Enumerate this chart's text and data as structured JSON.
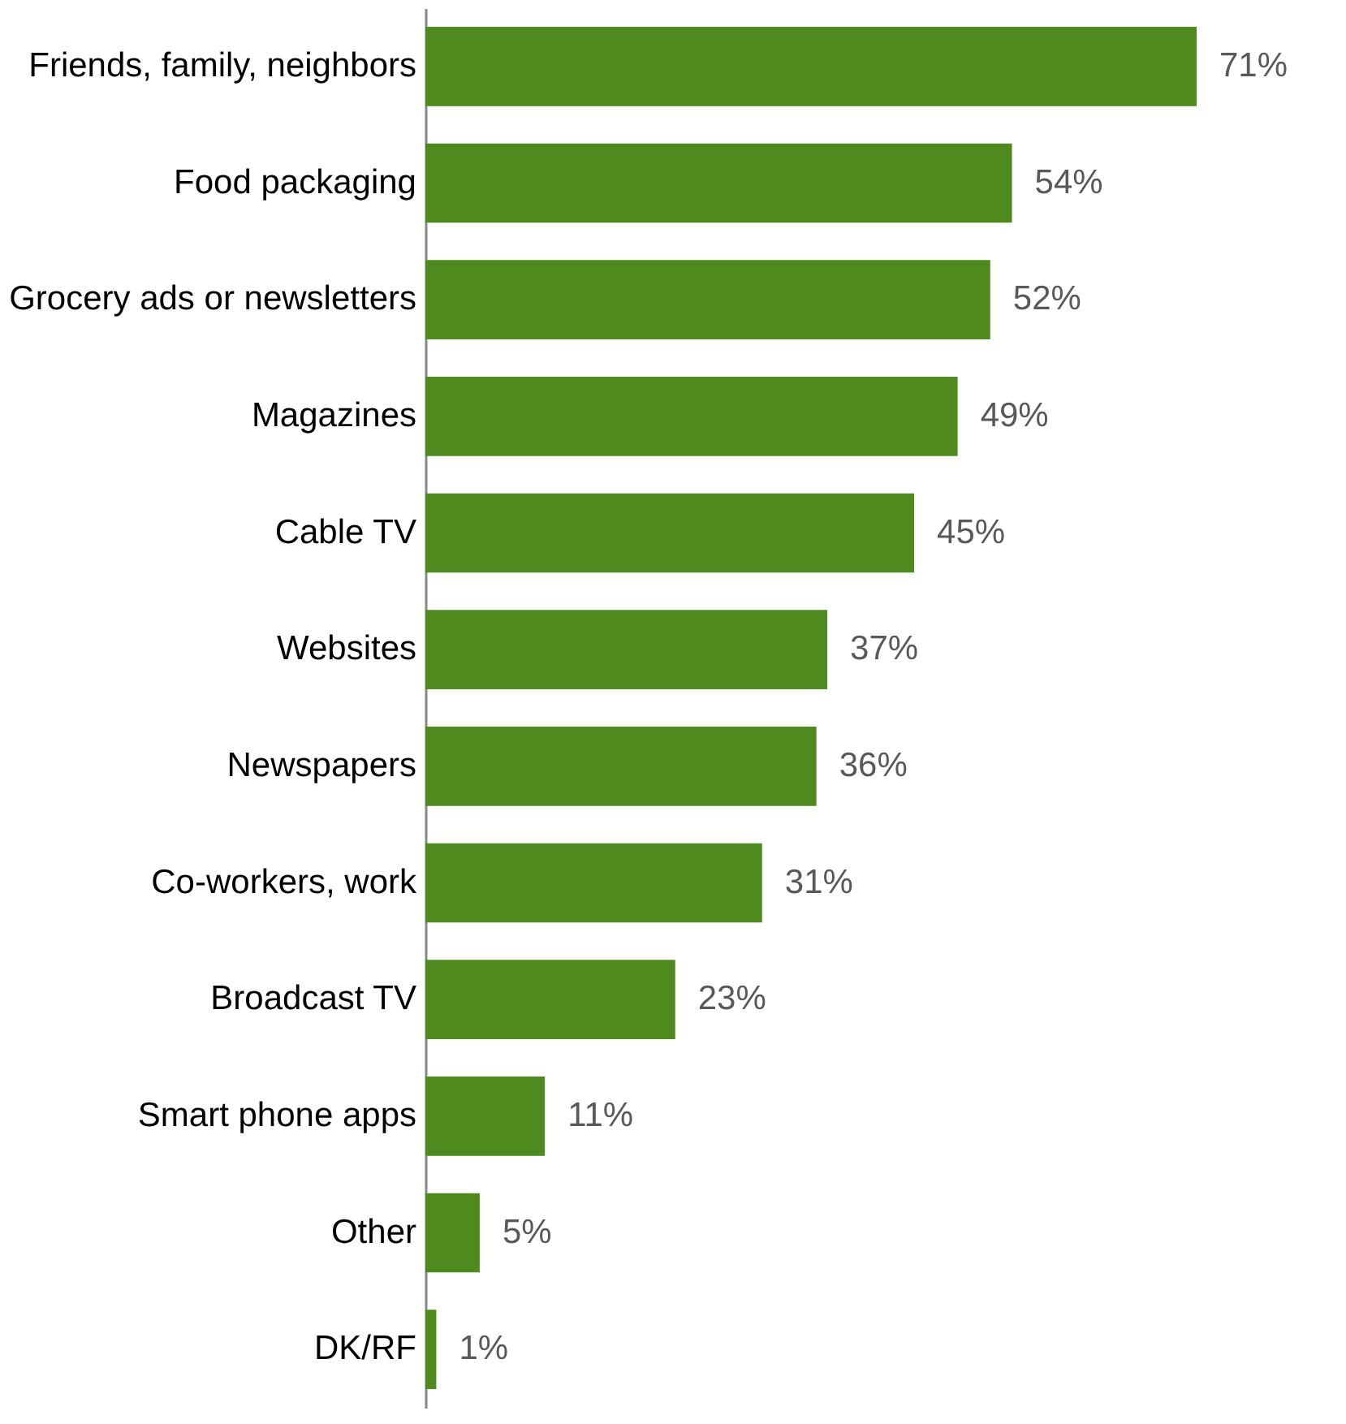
{
  "chart_data": {
    "type": "bar",
    "orientation": "horizontal",
    "categories": [
      "Friends, family, neighbors",
      "Food packaging",
      "Grocery ads or newsletters",
      "Magazines",
      "Cable TV",
      "Websites",
      "Newspapers",
      "Co-workers, work",
      "Broadcast TV",
      "Smart phone apps",
      "Other",
      "DK/RF"
    ],
    "values": [
      71,
      54,
      52,
      49,
      45,
      37,
      36,
      31,
      23,
      11,
      5,
      1
    ],
    "value_labels": [
      "71%",
      "54%",
      "52%",
      "49%",
      "45%",
      "37%",
      "36%",
      "31%",
      "23%",
      "11%",
      "5%",
      "1%"
    ],
    "color": "#4f8a1f"
  }
}
